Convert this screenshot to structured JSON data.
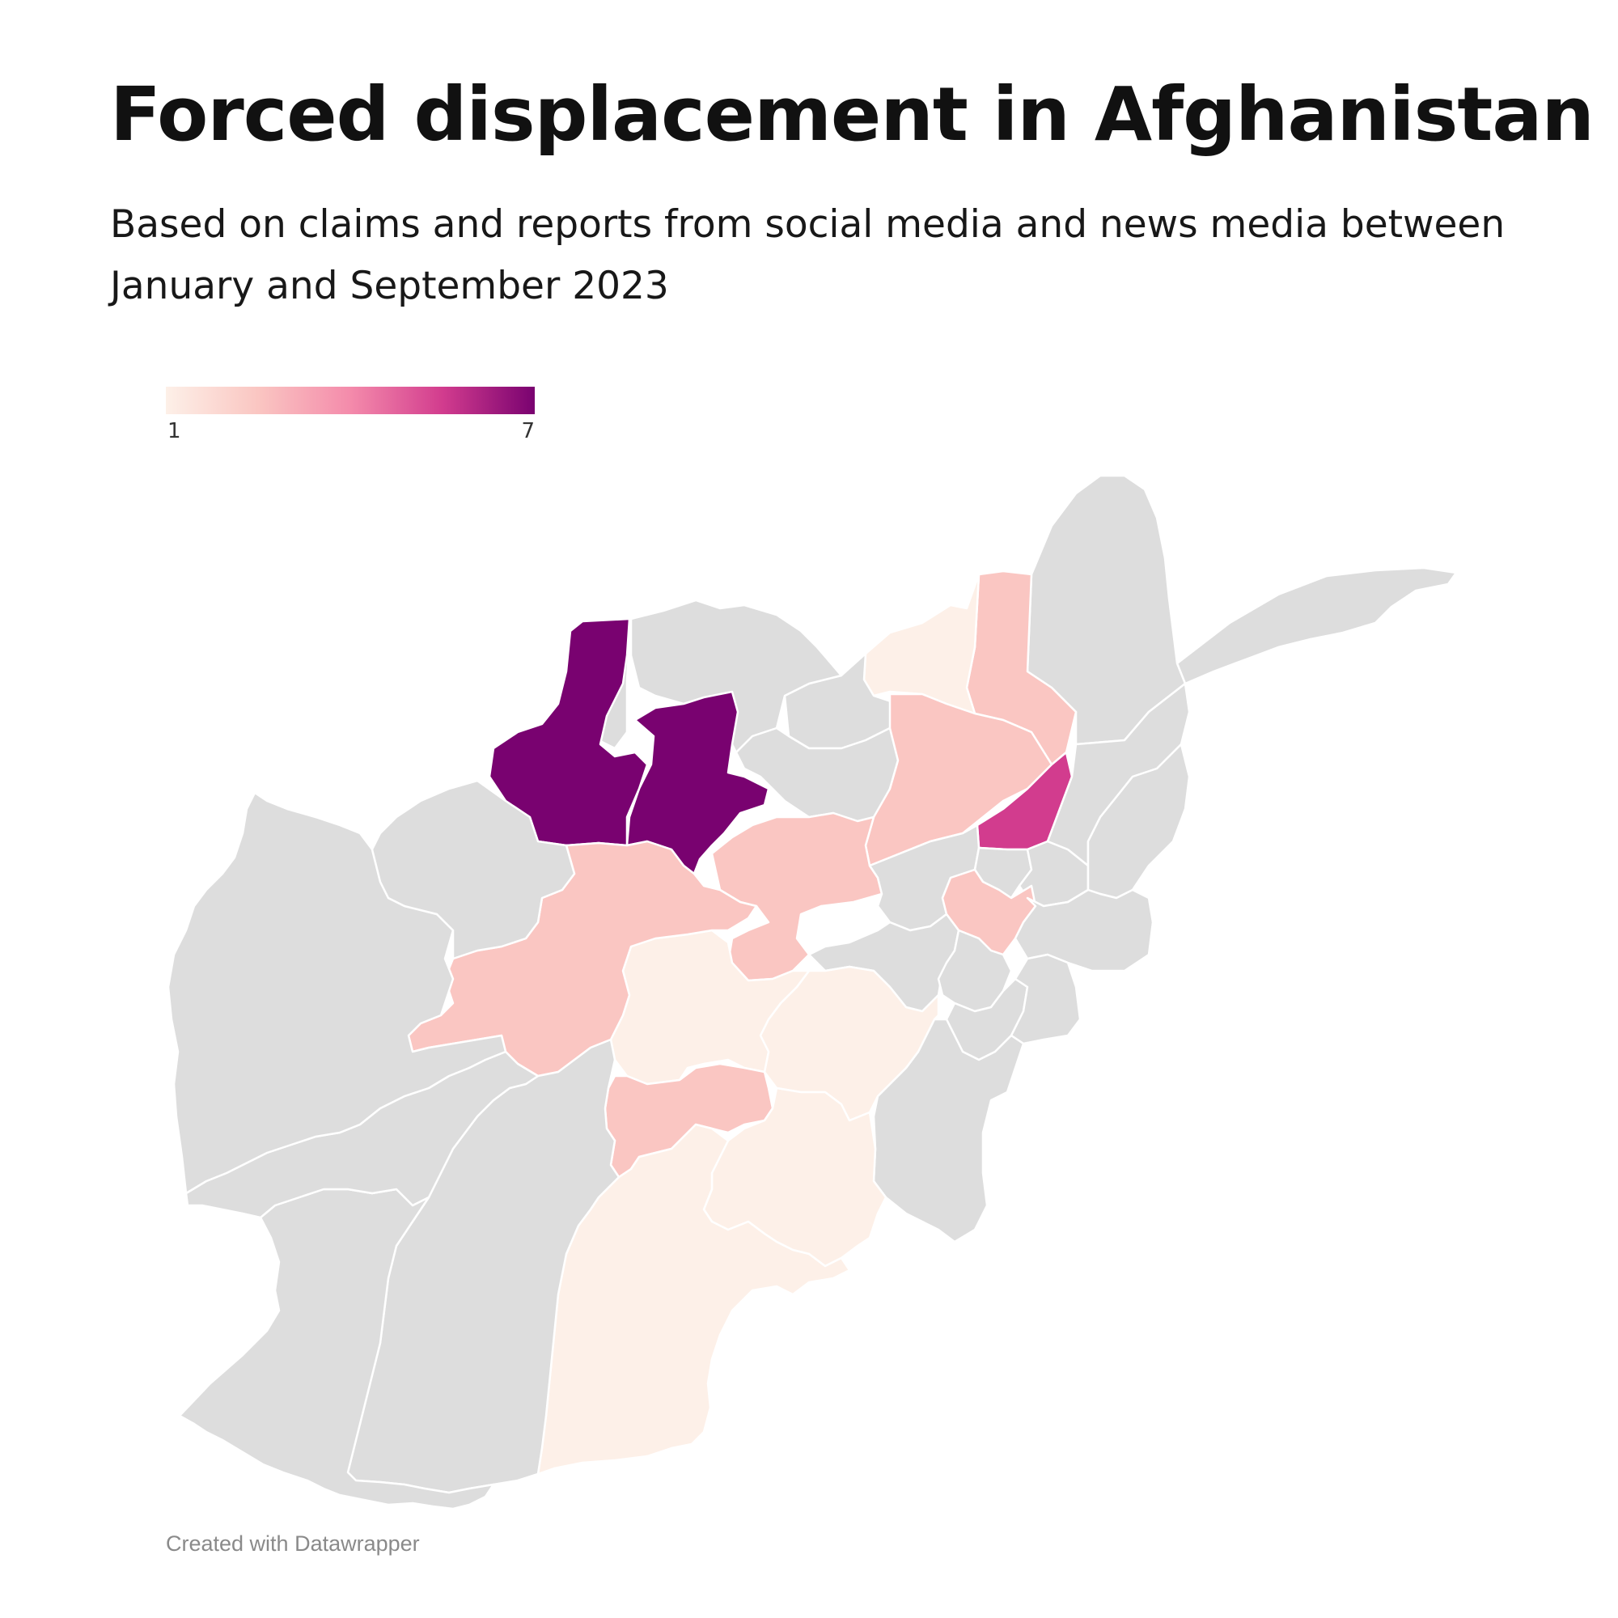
{
  "title": "Forced displacement in Afghanistan",
  "subtitle": "Based on claims and reports from social media and news media between January and September 2023",
  "legend": {
    "min": "1",
    "max": "7",
    "colors": [
      "#fdf0e8",
      "#fac6c2",
      "#f48bab",
      "#d23c8e",
      "#790270"
    ]
  },
  "credit": "Created with Datawrapper",
  "map": {
    "no_data_color": "#dddddd",
    "regions": [
      {
        "id": "faryab",
        "value": 7
      },
      {
        "id": "jawzjan",
        "value": 0
      },
      {
        "id": "sar-e-pol",
        "value": 7
      },
      {
        "id": "balkh",
        "value": 0
      },
      {
        "id": "samangan",
        "value": 0
      },
      {
        "id": "kunduz",
        "value": 0
      },
      {
        "id": "takhar",
        "value": 1
      },
      {
        "id": "badakhshan",
        "value": 0
      },
      {
        "id": "badakhshan-west-strip",
        "value": 3
      },
      {
        "id": "baghlan",
        "value": 2
      },
      {
        "id": "panjshir",
        "value": 5
      },
      {
        "id": "bamyan",
        "value": 3
      },
      {
        "id": "parwan",
        "value": 0
      },
      {
        "id": "kapisa",
        "value": 0
      },
      {
        "id": "laghman",
        "value": 0
      },
      {
        "id": "kabul",
        "value": 2
      },
      {
        "id": "ghor",
        "value": 2
      },
      {
        "id": "daykundi",
        "value": 1
      },
      {
        "id": "ghazni",
        "value": 1
      },
      {
        "id": "uruzgan",
        "value": 3
      },
      {
        "id": "zabul",
        "value": 1
      },
      {
        "id": "kandahar",
        "value": 1
      },
      {
        "id": "herat",
        "value": 0
      },
      {
        "id": "badghis",
        "value": 0
      },
      {
        "id": "farah",
        "value": 0
      },
      {
        "id": "nimroz",
        "value": 0
      },
      {
        "id": "helmand",
        "value": 0
      },
      {
        "id": "wardak",
        "value": 0
      },
      {
        "id": "logar",
        "value": 0
      },
      {
        "id": "paktia",
        "value": 0
      },
      {
        "id": "paktika",
        "value": 0
      },
      {
        "id": "khost",
        "value": 0
      },
      {
        "id": "nangarhar",
        "value": 0
      },
      {
        "id": "kunar",
        "value": 0
      },
      {
        "id": "nuristan",
        "value": 0
      },
      {
        "id": "wakhan",
        "value": 0
      }
    ]
  }
}
